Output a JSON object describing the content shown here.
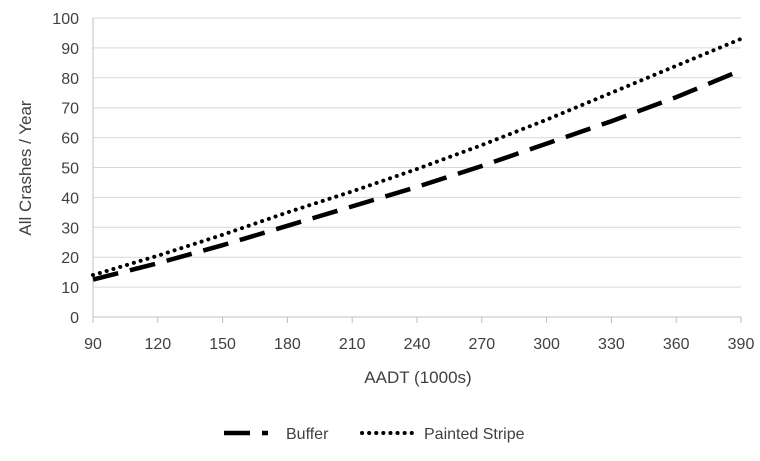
{
  "chart_data": {
    "type": "line",
    "title": "",
    "xlabel": "AADT (1000s)",
    "ylabel": "All Crashes / Year",
    "x": [
      90,
      120,
      150,
      180,
      210,
      240,
      270,
      300,
      330,
      360,
      390
    ],
    "x_tick_labels": [
      "90",
      "120",
      "150",
      "180",
      "210",
      "240",
      "270",
      "300",
      "330",
      "360",
      "390"
    ],
    "y_tick_labels": [
      "0",
      "10",
      "20",
      "30",
      "40",
      "50",
      "60",
      "70",
      "80",
      "90",
      "100"
    ],
    "xlim": [
      90,
      390
    ],
    "ylim": [
      0,
      100
    ],
    "y_step": 10,
    "grid": "horizontal",
    "legend": "bottom-center",
    "series": [
      {
        "name": "Buffer",
        "style": "dashed",
        "color": "#000000",
        "values": [
          12.5,
          18,
          24,
          30.5,
          37,
          43.5,
          50.5,
          58,
          65.5,
          73.5,
          82.5
        ]
      },
      {
        "name": "Painted Stripe",
        "style": "dotted",
        "color": "#000000",
        "values": [
          14,
          20.5,
          27.5,
          35,
          42,
          49.5,
          57.5,
          66,
          75,
          84,
          93
        ]
      }
    ]
  }
}
